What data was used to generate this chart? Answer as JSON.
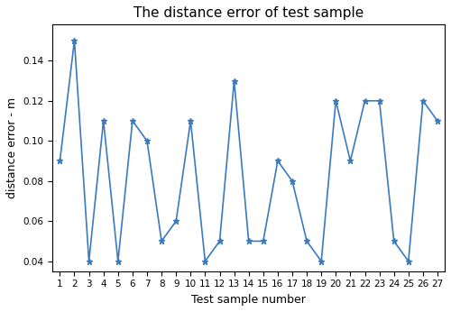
{
  "title": "The distance error of test sample",
  "xlabel": "Test sample number",
  "ylabel": "distance error - m",
  "x": [
    1,
    2,
    3,
    4,
    5,
    6,
    7,
    8,
    9,
    10,
    11,
    12,
    13,
    14,
    15,
    16,
    17,
    18,
    19,
    20,
    21,
    22,
    23,
    24,
    25,
    26,
    27
  ],
  "y": [
    0.09,
    0.15,
    0.04,
    0.11,
    0.04,
    0.11,
    0.1,
    0.05,
    0.06,
    0.11,
    0.04,
    0.05,
    0.13,
    0.05,
    0.05,
    0.09,
    0.08,
    0.05,
    0.04,
    0.12,
    0.09,
    0.12,
    0.12,
    0.05,
    0.04,
    0.12,
    0.11
  ],
  "line_color": "#3a7abf",
  "marker": "*",
  "markersize": 5,
  "linewidth": 1.2,
  "ylim": [
    0.035,
    0.158
  ],
  "yticks": [
    0.04,
    0.06,
    0.08,
    0.1,
    0.12,
    0.14
  ],
  "title_fontsize": 11,
  "label_fontsize": 9,
  "tick_fontsize": 7.5
}
